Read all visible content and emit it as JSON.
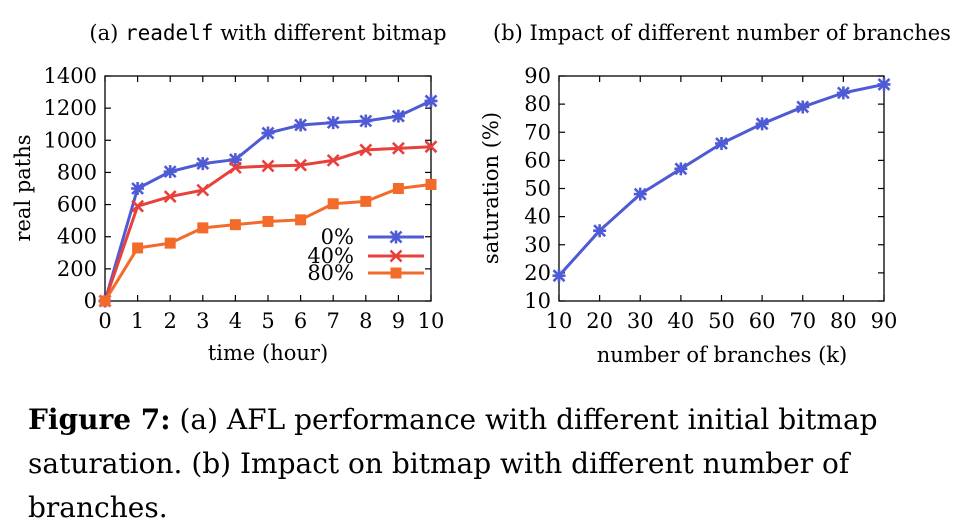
{
  "caption": {
    "label": "Figure 7:",
    "text": " (a) AFL performance with different initial bitmap saturation. (b) Impact on bitmap with different number of branches."
  },
  "colors": {
    "blue": "#4F5BD5",
    "red": "#E8403A",
    "orange": "#F26B2B"
  },
  "chart_data": [
    {
      "type": "line",
      "title_prefix": "(a)",
      "title_code": "readelf",
      "title_suffix": "with different bitmap",
      "xlabel": "time (hour)",
      "ylabel": "real paths",
      "xlim": [
        0,
        10
      ],
      "ylim": [
        0,
        1400
      ],
      "xticks": [
        0,
        1,
        2,
        3,
        4,
        5,
        6,
        7,
        8,
        9,
        10
      ],
      "yticks": [
        0,
        200,
        400,
        600,
        800,
        1000,
        1200,
        1400
      ],
      "grid": false,
      "legend_position": "bottom-right",
      "x": [
        0,
        1,
        2,
        3,
        4,
        5,
        6,
        7,
        8,
        9,
        10
      ],
      "series": [
        {
          "name": "0%",
          "color": "#4F5BD5",
          "marker": "star",
          "values": [
            0,
            700,
            805,
            855,
            880,
            1045,
            1095,
            1110,
            1120,
            1150,
            1245
          ]
        },
        {
          "name": "40%",
          "color": "#E8403A",
          "marker": "x",
          "values": [
            0,
            590,
            650,
            690,
            830,
            840,
            845,
            875,
            940,
            950,
            960
          ]
        },
        {
          "name": "80%",
          "color": "#F26B2B",
          "marker": "square",
          "values": [
            0,
            330,
            360,
            455,
            475,
            495,
            505,
            605,
            620,
            700,
            725
          ]
        }
      ]
    },
    {
      "type": "line",
      "title": "(b) Impact of different number of branches",
      "xlabel": "number of branches (k)",
      "ylabel": "saturation (%)",
      "xlim": [
        10,
        90
      ],
      "ylim": [
        10,
        90
      ],
      "xticks": [
        10,
        20,
        30,
        40,
        50,
        60,
        70,
        80,
        90
      ],
      "yticks": [
        10,
        20,
        30,
        40,
        50,
        60,
        70,
        80,
        90
      ],
      "grid": false,
      "x": [
        10,
        20,
        30,
        40,
        50,
        60,
        70,
        80,
        90
      ],
      "series": [
        {
          "name": "",
          "color": "#4F5BD5",
          "marker": "star",
          "values": [
            19,
            35,
            48,
            57,
            66,
            73,
            79,
            84,
            87
          ]
        }
      ]
    }
  ]
}
